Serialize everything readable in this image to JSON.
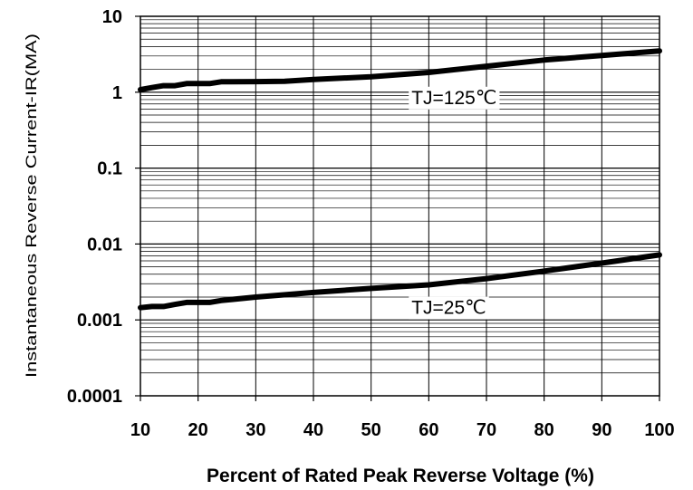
{
  "chart_data": {
    "type": "line",
    "xlabel": "Percent of Rated Peak Reverse Voltage (%)",
    "ylabel": "Instantaneous Reverse Current-IR(MA)",
    "xlim": [
      10,
      100
    ],
    "ylim": [
      0.0001,
      10
    ],
    "yscale": "log",
    "grid": true,
    "x_ticks": [
      10,
      20,
      30,
      40,
      50,
      60,
      70,
      80,
      90,
      100
    ],
    "x_tick_labels": [
      "10",
      "20",
      "30",
      "40",
      "50",
      "60",
      "70",
      "80",
      "90",
      "100"
    ],
    "y_ticks": [
      0.0001,
      0.001,
      0.01,
      0.1,
      1,
      10
    ],
    "y_tick_labels": [
      "0.0001",
      "0.001",
      "0.01",
      "0.1",
      "1",
      "10"
    ],
    "series": [
      {
        "name": "TJ=125℃",
        "x": [
          10,
          12,
          14,
          16,
          18,
          20,
          22,
          24,
          30,
          35,
          40,
          50,
          60,
          70,
          80,
          90,
          100
        ],
        "y": [
          1.08,
          1.15,
          1.22,
          1.22,
          1.3,
          1.3,
          1.3,
          1.37,
          1.38,
          1.39,
          1.47,
          1.6,
          1.82,
          2.2,
          2.65,
          3.05,
          3.5
        ]
      },
      {
        "name": "TJ=25℃",
        "x": [
          10,
          12,
          14,
          16,
          18,
          20,
          22,
          24,
          30,
          40,
          50,
          60,
          70,
          80,
          90,
          100
        ],
        "y": [
          0.00145,
          0.0015,
          0.0015,
          0.0016,
          0.0017,
          0.0017,
          0.0017,
          0.0018,
          0.002,
          0.0023,
          0.0026,
          0.0029,
          0.0035,
          0.0044,
          0.0056,
          0.0072
        ]
      }
    ],
    "annotations": [
      {
        "text": "TJ=125℃",
        "x": 57,
        "y": 0.7
      },
      {
        "text": "TJ=25℃",
        "x": 57,
        "y": 0.0012
      }
    ]
  }
}
